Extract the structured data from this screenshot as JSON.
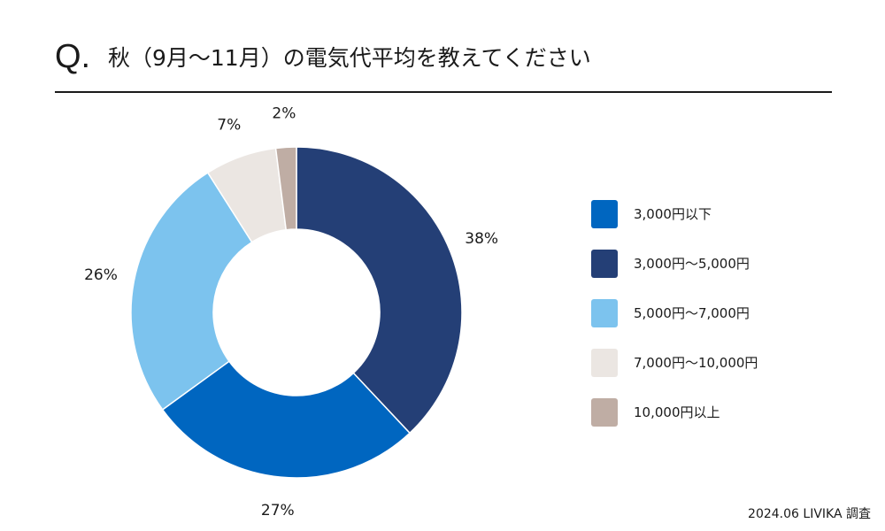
{
  "header": {
    "q_mark": "Q.",
    "question": "秋（9月～11月）の電気代平均を教えてください"
  },
  "chart_data": {
    "type": "pie",
    "donut": true,
    "categories": [
      "3,000円以下",
      "3,000円～5,000円",
      "5,000円～7,000円",
      "7,000円～10,000円",
      "10,000円以上"
    ],
    "values": [
      27,
      38,
      26,
      7,
      2
    ],
    "data_labels": [
      "27%",
      "38%",
      "26%",
      "7%",
      "2%"
    ],
    "colors": [
      "#0066c0",
      "#243f76",
      "#7cc3ee",
      "#ebe6e2",
      "#bfada4"
    ],
    "slice_order": [
      1,
      0,
      2,
      3,
      4
    ],
    "legend_position": "right",
    "title": ""
  },
  "footer": {
    "source": "2024.06 LIVIKA 調査"
  }
}
